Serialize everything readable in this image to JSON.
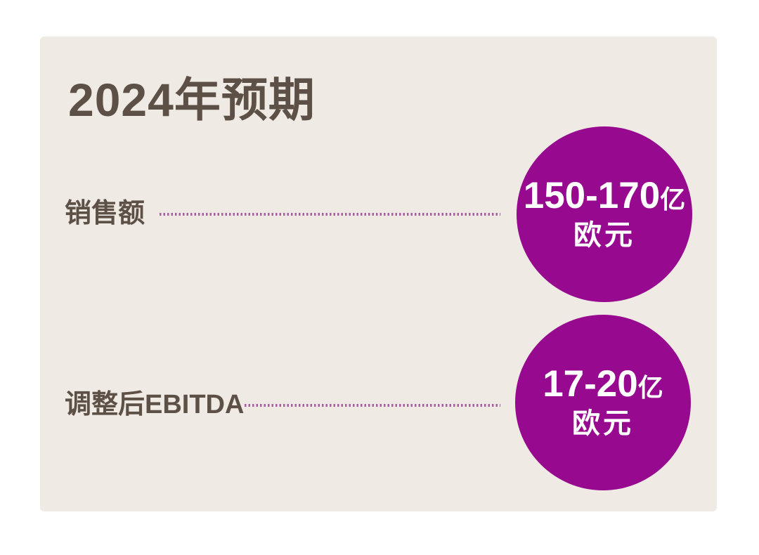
{
  "title": "2024年预期",
  "theme": {
    "page_bg": "#ffffff",
    "card_bg": "#efeae3",
    "heading_color": "#5d5047",
    "circle_color": "#97098e",
    "circle_text_color": "#ffffff",
    "dotted_line_color": "#a85fa3"
  },
  "rows": [
    {
      "label": "销售额",
      "value_main": "150-170",
      "value_unit": "亿",
      "value_sub": "欧元"
    },
    {
      "label": "调整后EBITDA",
      "value_main": "17-20",
      "value_unit": "亿",
      "value_sub": "欧元"
    }
  ],
  "chart_data": {
    "type": "table",
    "title": "2024年预期",
    "rows": [
      {
        "metric": "销售额",
        "value": "150-170亿欧元",
        "range_low": 150,
        "range_high": 170,
        "unit": "亿欧元"
      },
      {
        "metric": "调整后EBITDA",
        "value": "17-20亿欧元",
        "range_low": 17,
        "range_high": 20,
        "unit": "亿欧元"
      }
    ]
  }
}
